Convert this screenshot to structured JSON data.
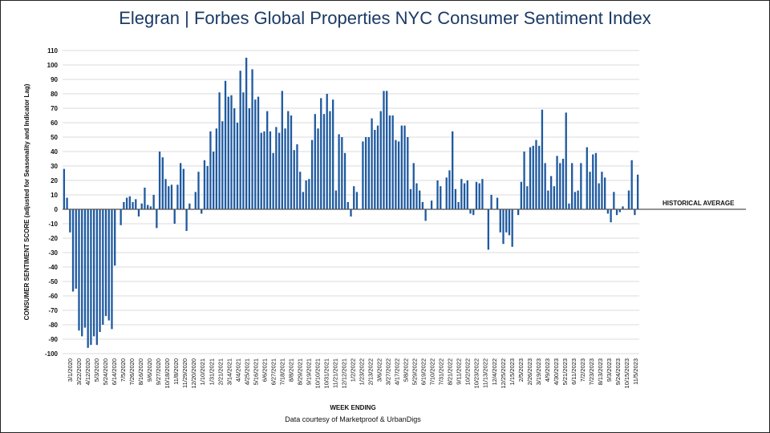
{
  "title_brand": "Elegran | Forbes Global Properties",
  "title_rest": " NYC Consumer Sentiment Index",
  "credit": "Data courtesy of Marketproof & UrbanDigs",
  "colors": {
    "bar": "#1f5aa0",
    "grid": "#cfcfcf",
    "title": "#1b3a66",
    "baseline": "#555555"
  },
  "chart_data": {
    "type": "bar",
    "title": "Elegran | Forbes Global Properties NYC Consumer Sentiment Index",
    "xlabel": "WEEK ENDING",
    "ylabel": "CONSUMER SENTIMENT SCORE (adjusted for Seasonality and Indicator Lag)",
    "ylim": [
      -100,
      110
    ],
    "yticks": [
      110,
      100,
      90,
      80,
      70,
      60,
      50,
      40,
      30,
      20,
      10,
      0,
      -10,
      -20,
      -30,
      -40,
      -50,
      -60,
      -70,
      -80,
      -90,
      -100
    ],
    "reference_line": {
      "label": "HISTORICAL AVERAGE",
      "value": 0
    },
    "grid": true,
    "x_tick_labels": [
      "3/1/2020",
      "3/22/2020",
      "4/12/2020",
      "5/3/2020",
      "5/24/2020",
      "6/14/2020",
      "7/5/2020",
      "7/26/2020",
      "8/16/2020",
      "9/6/2020",
      "9/27/2020",
      "10/18/2020",
      "11/8/2020",
      "11/29/2020",
      "12/20/2020",
      "1/10/2021",
      "1/31/2021",
      "2/21/2021",
      "3/14/2021",
      "4/4/2021",
      "4/25/2021",
      "5/16/2021",
      "6/6/2021",
      "6/27/2021",
      "7/18/2021",
      "8/8/2021",
      "8/29/2021",
      "9/19/2021",
      "10/10/2021",
      "10/31/2021",
      "11/21/2021",
      "12/12/2021",
      "1/2/2022",
      "1/23/2022",
      "2/13/2022",
      "3/6/2022",
      "3/27/2022",
      "4/17/2022",
      "5/8/2022",
      "5/29/2022",
      "6/19/2022",
      "7/10/2022",
      "7/31/2022",
      "8/21/2022",
      "9/11/2022",
      "10/2/2022",
      "10/23/2022",
      "11/13/2022",
      "12/4/2022",
      "12/25/2022",
      "1/15/2023",
      "2/5/2023",
      "2/26/2023",
      "3/19/2023",
      "4/9/2023",
      "4/30/2023",
      "5/21/2023",
      "6/11/2023",
      "7/2/2023",
      "7/23/2023",
      "8/13/2023",
      "9/3/2023",
      "9/24/2023",
      "10/15/2023",
      "11/5/2023"
    ],
    "values": [
      28,
      8,
      -16,
      -57,
      -55,
      -84,
      -88,
      -82,
      -96,
      -94,
      -88,
      -94,
      -85,
      -80,
      -74,
      -77,
      -83,
      -39,
      0,
      -11,
      5,
      8,
      9,
      5,
      7,
      -5,
      4,
      15,
      3,
      2,
      10,
      -13,
      40,
      36,
      21,
      16,
      17,
      -10,
      17,
      32,
      28,
      -15,
      4,
      0,
      12,
      26,
      -3,
      34,
      30,
      54,
      40,
      56,
      81,
      61,
      89,
      78,
      79,
      70,
      60,
      96,
      81,
      105,
      70,
      97,
      76,
      78,
      53,
      54,
      68,
      54,
      39,
      57,
      53,
      82,
      56,
      68,
      65,
      41,
      45,
      26,
      12,
      20,
      21,
      48,
      66,
      56,
      77,
      66,
      80,
      68,
      76,
      13,
      52,
      50,
      39,
      5,
      -5,
      16,
      12,
      0,
      47,
      50,
      50,
      63,
      55,
      58,
      68,
      82,
      82,
      65,
      65,
      48,
      47,
      58,
      58,
      50,
      14,
      32,
      18,
      13,
      5,
      -8,
      0,
      6,
      0,
      20,
      16,
      0,
      22,
      27,
      54,
      14,
      5,
      21,
      18,
      20,
      -3,
      -4,
      19,
      18,
      21,
      0,
      -28,
      10,
      0,
      8,
      -16,
      -24,
      -16,
      -18,
      -26,
      0,
      -4,
      19,
      40,
      16,
      43,
      44,
      48,
      44,
      69,
      32,
      13,
      23,
      16,
      37,
      32,
      35,
      67,
      4,
      32,
      12,
      13,
      32,
      0,
      43,
      26,
      38,
      39,
      18,
      26,
      22,
      -3,
      -9,
      12,
      -4,
      -2,
      2,
      0,
      13,
      34,
      -4,
      24
    ]
  }
}
